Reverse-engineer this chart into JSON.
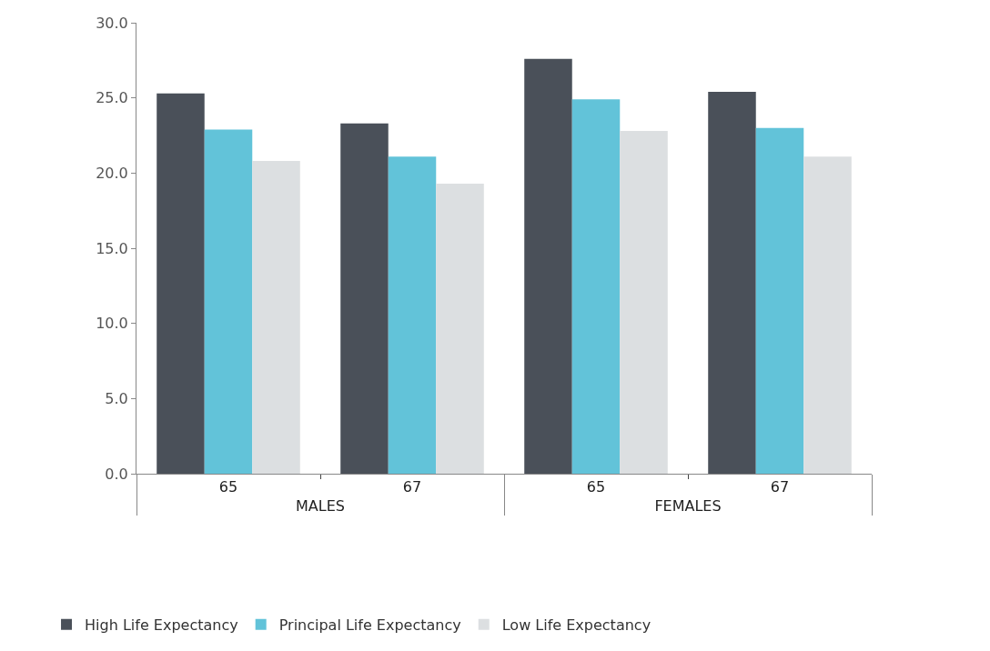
{
  "chart_data": {
    "type": "bar",
    "categories": [
      "65",
      "67",
      "65",
      "67"
    ],
    "annotations": [
      "MALES",
      "FEMALES"
    ],
    "series": [
      {
        "name": "High Life Expectancy",
        "color": "#4a5059",
        "values": [
          25.3,
          23.3,
          27.6,
          25.4
        ]
      },
      {
        "name": "Principal Life Expectancy",
        "color": "#62c3d9",
        "values": [
          22.9,
          21.1,
          24.9,
          23.0
        ]
      },
      {
        "name": "Low Life Expectancy",
        "color": "#dcdfe1",
        "values": [
          20.8,
          19.3,
          22.8,
          21.1
        ]
      }
    ],
    "ylim": [
      0,
      30
    ],
    "yticks": [
      {
        "value": 0,
        "label": "0.0"
      },
      {
        "value": 5,
        "label": "5.0"
      },
      {
        "value": 10,
        "label": "10.0"
      },
      {
        "value": 15,
        "label": "15.0"
      },
      {
        "value": 20,
        "label": "20.0"
      },
      {
        "value": 25,
        "label": "25.0"
      },
      {
        "value": 30,
        "label": "30.0"
      }
    ],
    "grid": false,
    "legend": "bottom left"
  }
}
